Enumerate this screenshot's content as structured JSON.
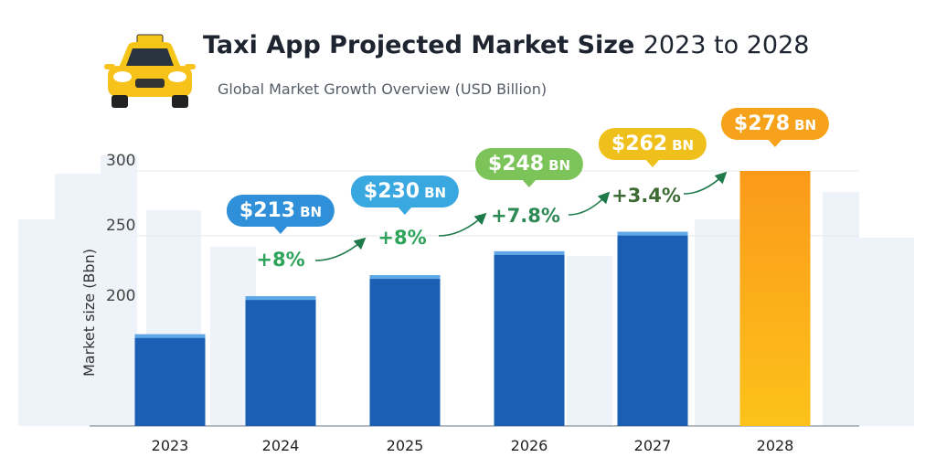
{
  "chart_data": {
    "type": "bar",
    "title": "Taxi App Projected Market Size",
    "title_years": "2023 to 2028",
    "subtitle": "Global Market Growth Overview (USD Billion)",
    "ylabel": "Market size (Bbn)",
    "yticks": [
      "300",
      "250",
      "200"
    ],
    "categories": [
      "2023",
      "2024",
      "2025",
      "2026",
      "2027",
      "2028"
    ],
    "values": [
      180,
      207,
      222,
      239,
      253,
      300
    ],
    "bar_colors": [
      "#1a5fb4",
      "#1a5fb4",
      "#1a5fb4",
      "#1a5fb4",
      "#1a5fb4",
      "#f7a21b"
    ],
    "callouts": [
      {
        "value": "$213",
        "unit": "BN",
        "color": "#2f8fd8"
      },
      {
        "value": "$230",
        "unit": "BN",
        "color": "#3aa8e0"
      },
      {
        "value": "$248",
        "unit": "BN",
        "color": "#7cc35a"
      },
      {
        "value": "$262",
        "unit": "BN",
        "color": "#efc01c"
      },
      {
        "value": "$278",
        "unit": "BN",
        "color": "#f7a21b"
      }
    ],
    "growth": [
      {
        "label": "+8%",
        "color": "#2ea35a"
      },
      {
        "label": "+8%",
        "color": "#2ea35a"
      },
      {
        "label": "+7.8%",
        "color": "#2e8a55"
      },
      {
        "label": "+3.4%",
        "color": "#3d6b33"
      }
    ],
    "grid": true,
    "legend": "none"
  },
  "icons": {
    "logo": "taxi-car-icon"
  }
}
